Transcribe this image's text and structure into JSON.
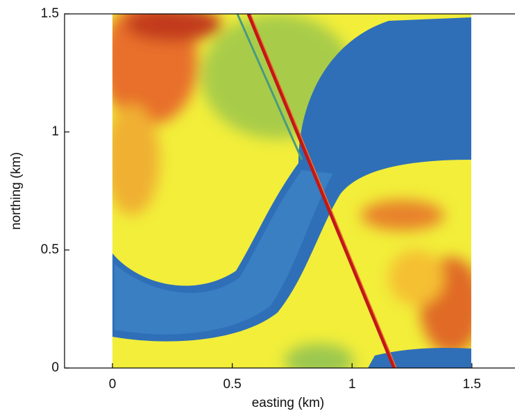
{
  "chart_data": {
    "type": "image",
    "xlabel": "easting (km)",
    "ylabel": "northing (km)",
    "xlim": [
      -0.2,
      1.68
    ],
    "ylim": [
      0,
      1.5
    ],
    "xticks": [
      0,
      0.5,
      1,
      1.5
    ],
    "yticks": [
      0,
      0.5,
      1,
      1.5
    ]
  }
}
